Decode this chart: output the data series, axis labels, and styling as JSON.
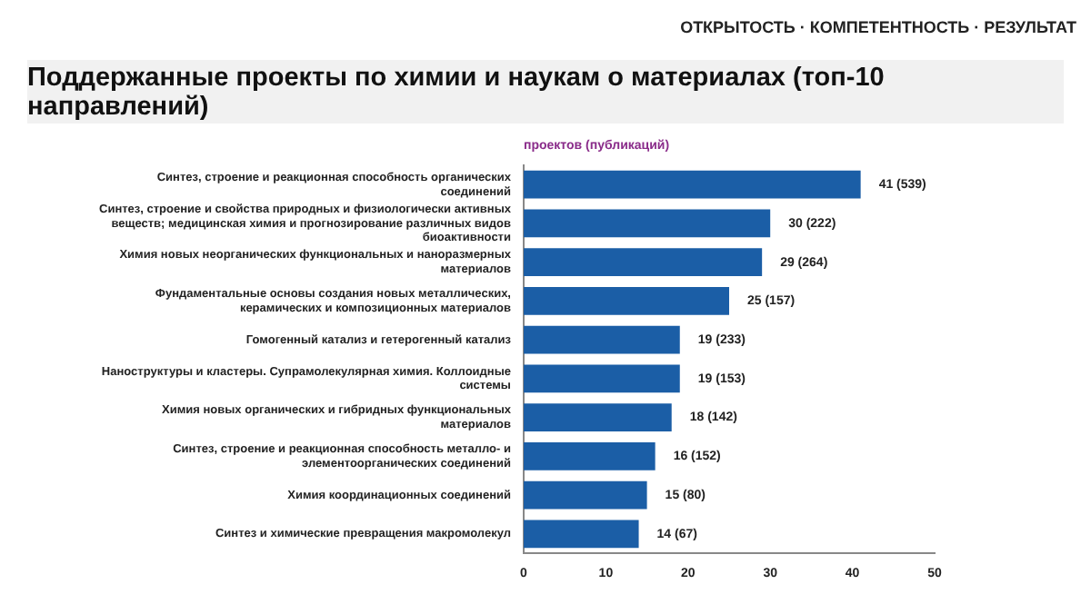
{
  "chart_data": {
    "type": "bar",
    "orientation": "horizontal",
    "title": "Поддержанные проекты по химии и наукам о материалах (топ-10 направлений)",
    "subtitle": "проектов (публикаций)",
    "annotations": [
      "ОТКРЫТОСТЬ · КОМПЕТЕНТНОСТЬ · РЕЗУЛЬТАТ"
    ],
    "categories": [
      "Синтез, строение и реакционная способность органических соединений",
      "Синтез, строение и свойства природных и физиологически активных веществ; медицинская химия и прогнозирование различных видов биоактивности",
      "Химия новых неорганических функциональных и наноразмерных материалов",
      "Фундаментальные основы создания новых металлических, керамических и композиционных материалов",
      "Гомогенный катализ и гетерогенный катализ",
      "Наноструктуры и кластеры. Супрамолекулярная химия. Коллоидные системы",
      "Химия новых органических и гибридных функциональных материалов",
      "Синтез, строение и реакционная способность металло- и элементоорганических соединений",
      "Химия координационных соединений",
      "Синтез и химические превращения макромолекул"
    ],
    "values": [
      41,
      30,
      29,
      25,
      19,
      19,
      18,
      16,
      15,
      14
    ],
    "value_labels": [
      "41 (539)",
      "30 (222)",
      "29 (264)",
      "25 (157)",
      "19 (233)",
      "19 (153)",
      "18 (142)",
      "16 (152)",
      "15 (80)",
      "14 (67)"
    ],
    "color": "#1b5ea6",
    "xlim": [
      0,
      50
    ],
    "xticks": [
      0,
      10,
      20,
      30,
      40,
      50
    ],
    "grid": false,
    "legend": false
  }
}
